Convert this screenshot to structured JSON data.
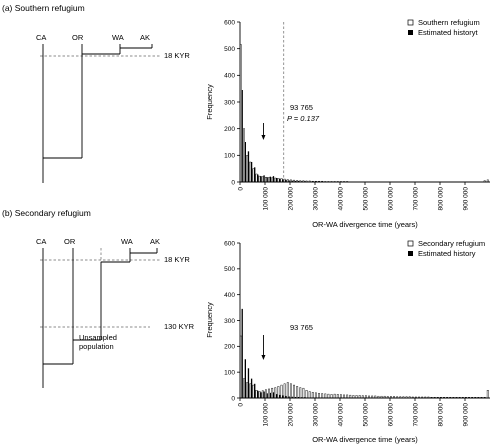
{
  "panels": [
    {
      "title": "(a) Southern refugium",
      "tree": {
        "populations": [
          "CA",
          "OR",
          "WA",
          "AK"
        ],
        "time_labels": [
          "18 KYR"
        ]
      },
      "chart": {
        "legend": [
          "Southern refugium",
          "Estimated historyt"
        ],
        "annotation": {
          "value": "93 765",
          "pvalue": "P = 0.137"
        }
      }
    },
    {
      "title": "(b) Secondary refugium",
      "tree": {
        "populations": [
          "CA",
          "OR",
          "WA",
          "AK"
        ],
        "time_labels": [
          "18 KYR",
          "130 KYR"
        ],
        "unsampled_label": [
          "Unsampled",
          "population"
        ]
      },
      "chart": {
        "legend": [
          "Secondary refugium",
          "Estimated history"
        ],
        "annotation": {
          "value": "93 765"
        }
      }
    }
  ],
  "chart_data": [
    {
      "type": "bar",
      "ylabel": "Frequency",
      "xlabel": "OR-WA divergence time (years)",
      "ylim": [
        0,
        600
      ],
      "yticks": [
        0,
        100,
        200,
        300,
        400,
        500,
        600
      ],
      "xlim": [
        0,
        1000000
      ],
      "xticks": [
        "0",
        "100 000",
        "200 000",
        "300 000",
        "400 000",
        "500 000",
        "600 000",
        "700 000",
        "800 000",
        "900 000"
      ],
      "xtick_values": [
        0,
        100000,
        200000,
        300000,
        400000,
        500000,
        600000,
        700000,
        800000,
        900000
      ],
      "bin_width": 12500,
      "reference_line_x": 175000,
      "arrow_x": 93765,
      "series": [
        {
          "name": "Southern refugium",
          "style": "open",
          "values": [
            515,
            200,
            100,
            75,
            50,
            30,
            22,
            20,
            18,
            17,
            16,
            15,
            14,
            13,
            11,
            9,
            8,
            7,
            6,
            5,
            5,
            4,
            4,
            3,
            3,
            3,
            3,
            2,
            2,
            2,
            2,
            2,
            2,
            2,
            2,
            1,
            1,
            1,
            1,
            1,
            1,
            1,
            1,
            1,
            1,
            1,
            1,
            1,
            1,
            1,
            1,
            1,
            1,
            1,
            1,
            1,
            1,
            1,
            1,
            1,
            1,
            1,
            1,
            1,
            1,
            1,
            1,
            1,
            1,
            1,
            1,
            1,
            1,
            1,
            1,
            1,
            1,
            1,
            5,
            8
          ]
        },
        {
          "name": "Estimated historyt",
          "style": "filled",
          "values": [
            345,
            150,
            115,
            75,
            55,
            28,
            22,
            25,
            18,
            20,
            22,
            15,
            12,
            10,
            8,
            6,
            5,
            4,
            4,
            3,
            3,
            2,
            2,
            2,
            2,
            1,
            1,
            1,
            1,
            1,
            1,
            1,
            1,
            1,
            1,
            1,
            1,
            1,
            1,
            1,
            1,
            1,
            1,
            1,
            1,
            1,
            1,
            1,
            1,
            1,
            1,
            1,
            1,
            1,
            1,
            1,
            1,
            1,
            1,
            1,
            1,
            1,
            1,
            1,
            1,
            1,
            1,
            1,
            1,
            1,
            1,
            1,
            1,
            1,
            1,
            1,
            1,
            1,
            1,
            1
          ]
        }
      ]
    },
    {
      "type": "bar",
      "ylabel": "Frequency",
      "xlabel": "OR-WA divergence time (years)",
      "ylim": [
        0,
        600
      ],
      "yticks": [
        0,
        100,
        200,
        300,
        400,
        500,
        600
      ],
      "xlim": [
        0,
        1000000
      ],
      "xticks": [
        "0",
        "100 000",
        "200 000",
        "300 000",
        "400 000",
        "500 000",
        "600 000",
        "700 000",
        "800 000",
        "900 000"
      ],
      "xtick_values": [
        0,
        100000,
        200000,
        300000,
        400000,
        500000,
        600000,
        700000,
        800000,
        900000
      ],
      "bin_width": 12500,
      "arrow_x": 93765,
      "series": [
        {
          "name": "Secondary refugium",
          "style": "open",
          "values": [
            240,
            75,
            60,
            55,
            50,
            30,
            25,
            28,
            32,
            35,
            38,
            40,
            45,
            50,
            55,
            60,
            55,
            50,
            45,
            40,
            38,
            30,
            25,
            22,
            20,
            18,
            17,
            16,
            15,
            14,
            15,
            14,
            13,
            12,
            12,
            11,
            10,
            10,
            10,
            9,
            9,
            8,
            8,
            8,
            7,
            7,
            7,
            6,
            6,
            6,
            5,
            5,
            5,
            5,
            5,
            4,
            4,
            4,
            4,
            4,
            4,
            3,
            3,
            3,
            3,
            3,
            3,
            3,
            3,
            3,
            3,
            3,
            3,
            3,
            3,
            3,
            3,
            3,
            3,
            30
          ]
        },
        {
          "name": "Estimated history",
          "style": "filled",
          "values": [
            345,
            150,
            115,
            75,
            55,
            28,
            22,
            25,
            18,
            20,
            22,
            15,
            12,
            10,
            8,
            6,
            5,
            4,
            4,
            3,
            3,
            2,
            2,
            2,
            2,
            1,
            1,
            1,
            1,
            1,
            1,
            1,
            1,
            1,
            1,
            1,
            1,
            1,
            1,
            1,
            1,
            1,
            1,
            1,
            1,
            1,
            1,
            1,
            1,
            1,
            1,
            1,
            1,
            1,
            1,
            1,
            1,
            1,
            1,
            1,
            1,
            1,
            1,
            1,
            1,
            1,
            1,
            1,
            1,
            1,
            1,
            1,
            1,
            1,
            1,
            1,
            1,
            1,
            1,
            1
          ]
        }
      ]
    }
  ]
}
